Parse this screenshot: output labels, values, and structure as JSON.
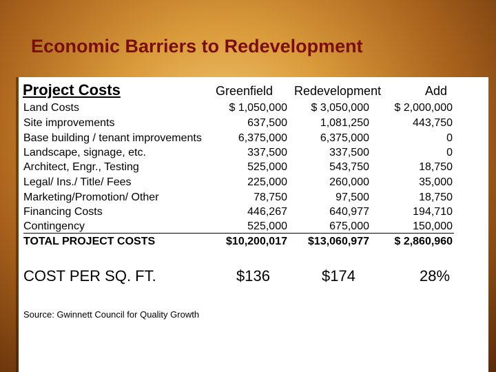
{
  "title": "Economic Barriers to Redevelopment",
  "heading": "Project Costs",
  "columns": [
    "Greenfield",
    "Redevelopment",
    "Add"
  ],
  "rows": [
    {
      "label": "Land Costs",
      "greenfield": "$ 1,050,000",
      "redevelopment": "$ 3,050,000",
      "add": "$ 2,000,000"
    },
    {
      "label": "Site improvements",
      "greenfield": "637,500",
      "redevelopment": "1,081,250",
      "add": "443,750"
    },
    {
      "label": "Base building / tenant improvements",
      "greenfield": "6,375,000",
      "redevelopment": "6,375,000",
      "add": "0"
    },
    {
      "label": "Landscape, signage, etc.",
      "greenfield": "337,500",
      "redevelopment": "337,500",
      "add": "0"
    },
    {
      "label": "Architect, Engr., Testing",
      "greenfield": "525,000",
      "redevelopment": "543,750",
      "add": "18,750"
    },
    {
      "label": "Legal/ Ins./ Title/ Fees",
      "greenfield": "225,000",
      "redevelopment": "260,000",
      "add": "35,000"
    },
    {
      "label": "Marketing/Promotion/ Other",
      "greenfield": "78,750",
      "redevelopment": "97,500",
      "add": "18,750"
    },
    {
      "label": "Financing Costs",
      "greenfield": "446,267",
      "redevelopment": "640,977",
      "add": "194,710"
    },
    {
      "label": "Contingency",
      "greenfield": "525,000",
      "redevelopment": "675,000",
      "add": "150,000"
    },
    {
      "label": "TOTAL PROJECT COSTS",
      "greenfield": "$10,200,017",
      "redevelopment": "$13,060,977",
      "add": "$ 2,860,960"
    }
  ],
  "cost_per_sqft": {
    "label": "COST PER SQ. FT.",
    "greenfield": "$136",
    "redevelopment": "$174",
    "add": "28%"
  },
  "source": "Source: Gwinnett Council for Quality Growth"
}
